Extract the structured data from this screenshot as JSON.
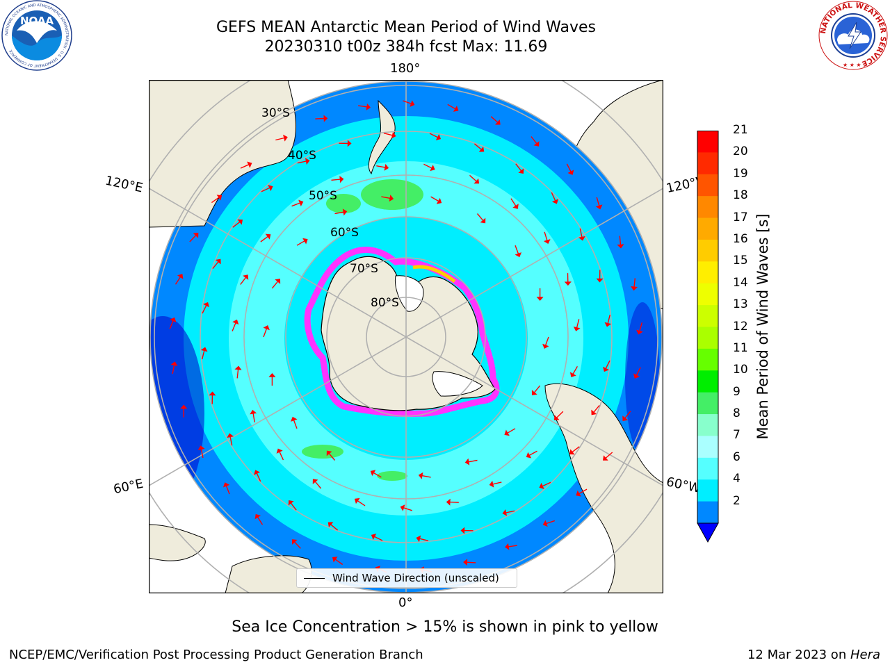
{
  "header": {
    "title_line1": "GEFS MEAN Antarctic Mean Period of Wind Waves",
    "title_line2": "20230310 t00z 384h fcst   Max: 11.69"
  },
  "logos": {
    "noaa_text": "NOAA",
    "noaa_ring_text": "NATIONAL OCEANIC AND ATMOSPHERIC ADMINISTRATION · U.S. DEPARTMENT OF COMMERCE",
    "nws_ring_text": "NATIONAL WEATHER SERVICE"
  },
  "map": {
    "projection": "south-polar-stereographic",
    "longitude_labels": {
      "top": "180°",
      "bottom": "0°",
      "left_upper": "120°E",
      "left_lower": "60°E",
      "right_upper": "120°W",
      "right_lower": "60°W"
    },
    "latitude_labels": [
      "30°S",
      "40°S",
      "50°S",
      "60°S",
      "70°S",
      "80°S"
    ],
    "colors": {
      "land": "#efecdc",
      "ice_low": "#ff33ff",
      "ice_high": "#ffee00",
      "arrow": "#ff0000",
      "grid": "#b0b0b0"
    }
  },
  "colorbar": {
    "label": "Mean Period of Wind Waves [s]",
    "ticks": [
      "21",
      "20",
      "19",
      "18",
      "17",
      "16",
      "15",
      "14",
      "13",
      "12",
      "11",
      "10",
      "9",
      "8",
      "7",
      "6",
      "4",
      "2"
    ],
    "colors_top_to_bottom": [
      "#ff0000",
      "#ff2a00",
      "#ff5500",
      "#ff8800",
      "#ffaa00",
      "#ffcc00",
      "#ffee00",
      "#eeff00",
      "#ccff00",
      "#aaff00",
      "#66ff00",
      "#00ee00",
      "#44ee66",
      "#88ffcc",
      "#aaffff",
      "#55ffff",
      "#00eeff",
      "#0088ff"
    ],
    "under_color": "#0000ff"
  },
  "legend": {
    "label": "Wind Wave Direction (unscaled)"
  },
  "footer": {
    "note": "Sea Ice Concentration > 15% is shown in pink to yellow",
    "credit": "NCEP/EMC/Verification Post Processing Product Generation Branch",
    "date": "12 Mar 2023 on ",
    "machine": "Hera"
  }
}
